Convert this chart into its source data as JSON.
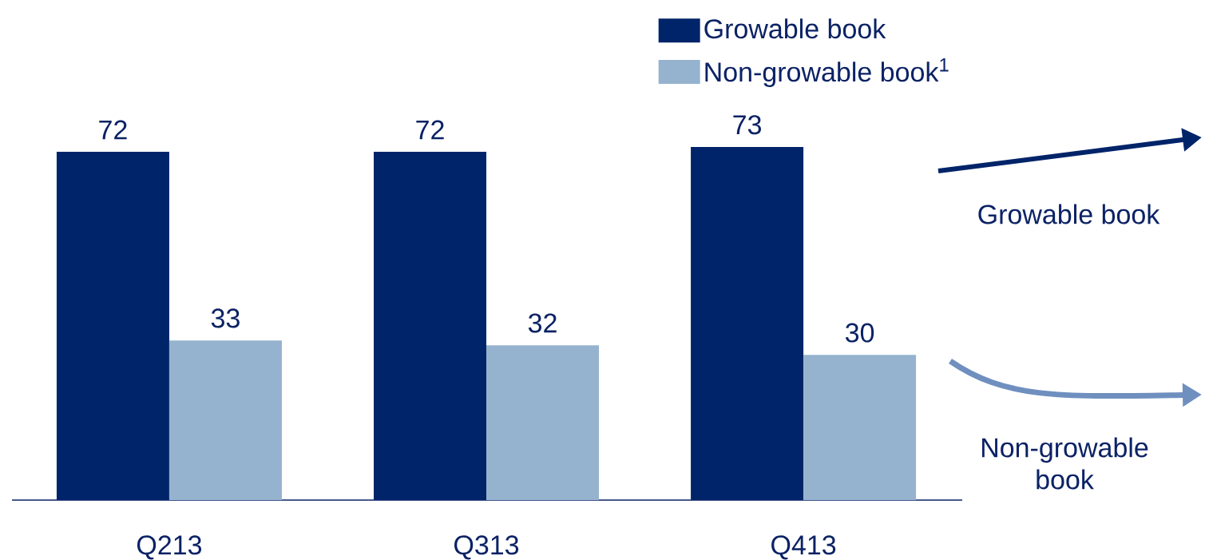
{
  "chart_data": {
    "type": "bar",
    "categories": [
      "Q213",
      "Q313",
      "Q413"
    ],
    "series": [
      {
        "name": "Growable book",
        "color": "#002469",
        "values": [
          72,
          72,
          73
        ]
      },
      {
        "name": "Non-growable book$^{1}$",
        "color": "#95b3cf",
        "values": [
          33,
          32,
          30
        ]
      }
    ],
    "data_labels": true,
    "legend": "top right",
    "annotations": [
      "Growable book",
      "Non-growable book"
    ]
  }
}
